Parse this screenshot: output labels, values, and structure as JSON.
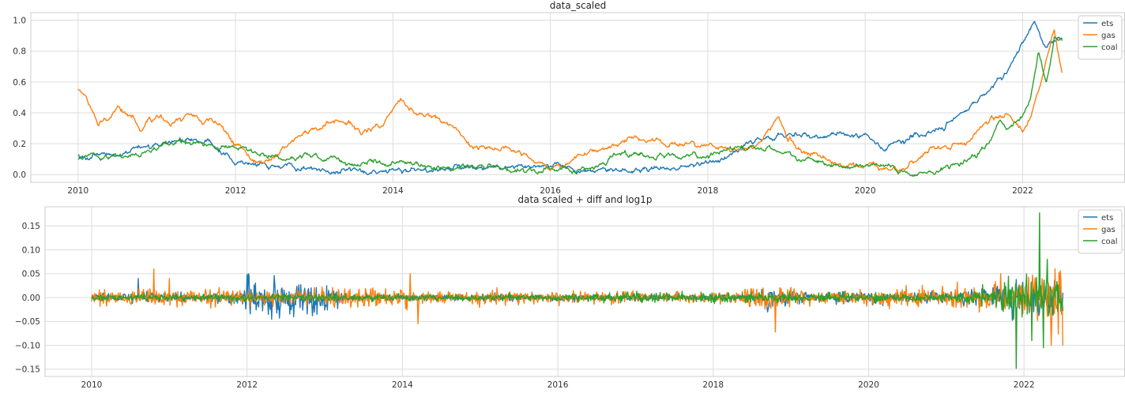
{
  "chart_data": [
    {
      "type": "line",
      "title": "data_scaled",
      "xlabel": "",
      "ylabel": "",
      "xlim": [
        2009.4,
        2023.3
      ],
      "ylim": [
        -0.05,
        1.05
      ],
      "x_ticks": [
        2010,
        2012,
        2014,
        2016,
        2018,
        2020,
        2022
      ],
      "x_tick_labels": [
        "2010",
        "2012",
        "2014",
        "2016",
        "2018",
        "2020",
        "2022"
      ],
      "y_ticks": [
        0.0,
        0.2,
        0.4,
        0.6,
        0.8,
        1.0
      ],
      "y_tick_labels": [
        "0.0",
        "0.2",
        "0.4",
        "0.6",
        "0.8",
        "1.0"
      ],
      "grid": true,
      "legend": "top-right",
      "x_range": [
        2010.0,
        2022.5
      ],
      "series": [
        {
          "name": "ets",
          "color": "#1f77b4",
          "points": [
            [
              2010.0,
              0.11
            ],
            [
              2010.5,
              0.12
            ],
            [
              2010.7,
              0.18
            ],
            [
              2011.0,
              0.19
            ],
            [
              2011.3,
              0.23
            ],
            [
              2011.6,
              0.21
            ],
            [
              2011.9,
              0.14
            ],
            [
              2012.0,
              0.06
            ],
            [
              2012.3,
              0.07
            ],
            [
              2012.6,
              0.06
            ],
            [
              2012.9,
              0.06
            ],
            [
              2013.0,
              0.03
            ],
            [
              2013.3,
              0.02
            ],
            [
              2013.6,
              0.02
            ],
            [
              2014.0,
              0.03
            ],
            [
              2014.3,
              0.04
            ],
            [
              2014.6,
              0.04
            ],
            [
              2015.0,
              0.04
            ],
            [
              2015.5,
              0.05
            ],
            [
              2016.0,
              0.04
            ],
            [
              2016.3,
              0.03
            ],
            [
              2016.6,
              0.03
            ],
            [
              2017.0,
              0.03
            ],
            [
              2017.5,
              0.04
            ],
            [
              2018.0,
              0.07
            ],
            [
              2018.3,
              0.13
            ],
            [
              2018.5,
              0.22
            ],
            [
              2018.8,
              0.25
            ],
            [
              2019.0,
              0.27
            ],
            [
              2019.3,
              0.25
            ],
            [
              2019.6,
              0.26
            ],
            [
              2020.0,
              0.25
            ],
            [
              2020.2,
              0.18
            ],
            [
              2020.5,
              0.23
            ],
            [
              2020.7,
              0.26
            ],
            [
              2021.0,
              0.3
            ],
            [
              2021.3,
              0.43
            ],
            [
              2021.6,
              0.55
            ],
            [
              2021.8,
              0.65
            ],
            [
              2022.0,
              0.85
            ],
            [
              2022.15,
              0.98
            ],
            [
              2022.3,
              0.84
            ],
            [
              2022.5,
              0.87
            ]
          ]
        },
        {
          "name": "gas",
          "color": "#ff7f0e",
          "points": [
            [
              2010.0,
              0.55
            ],
            [
              2010.1,
              0.5
            ],
            [
              2010.25,
              0.33
            ],
            [
              2010.4,
              0.36
            ],
            [
              2010.5,
              0.44
            ],
            [
              2010.7,
              0.36
            ],
            [
              2010.8,
              0.28
            ],
            [
              2010.9,
              0.35
            ],
            [
              2011.0,
              0.38
            ],
            [
              2011.2,
              0.33
            ],
            [
              2011.4,
              0.4
            ],
            [
              2011.6,
              0.36
            ],
            [
              2011.8,
              0.32
            ],
            [
              2012.0,
              0.22
            ],
            [
              2012.2,
              0.12
            ],
            [
              2012.4,
              0.08
            ],
            [
              2012.7,
              0.2
            ],
            [
              2013.0,
              0.28
            ],
            [
              2013.3,
              0.35
            ],
            [
              2013.6,
              0.28
            ],
            [
              2013.9,
              0.36
            ],
            [
              2014.1,
              0.5
            ],
            [
              2014.2,
              0.42
            ],
            [
              2014.5,
              0.38
            ],
            [
              2014.8,
              0.3
            ],
            [
              2015.0,
              0.18
            ],
            [
              2015.3,
              0.17
            ],
            [
              2015.6,
              0.16
            ],
            [
              2015.9,
              0.08
            ],
            [
              2016.0,
              0.03
            ],
            [
              2016.3,
              0.1
            ],
            [
              2016.6,
              0.18
            ],
            [
              2016.9,
              0.22
            ],
            [
              2017.1,
              0.24
            ],
            [
              2017.4,
              0.2
            ],
            [
              2017.7,
              0.19
            ],
            [
              2018.0,
              0.18
            ],
            [
              2018.3,
              0.17
            ],
            [
              2018.6,
              0.18
            ],
            [
              2018.8,
              0.28
            ],
            [
              2018.9,
              0.38
            ],
            [
              2019.0,
              0.25
            ],
            [
              2019.2,
              0.16
            ],
            [
              2019.5,
              0.1
            ],
            [
              2019.8,
              0.07
            ],
            [
              2020.0,
              0.05
            ],
            [
              2020.3,
              0.03
            ],
            [
              2020.5,
              0.04
            ],
            [
              2020.7,
              0.1
            ],
            [
              2020.9,
              0.18
            ],
            [
              2021.0,
              0.18
            ],
            [
              2021.3,
              0.2
            ],
            [
              2021.6,
              0.38
            ],
            [
              2021.8,
              0.4
            ],
            [
              2022.0,
              0.3
            ],
            [
              2022.1,
              0.4
            ],
            [
              2022.2,
              0.55
            ],
            [
              2022.3,
              0.75
            ],
            [
              2022.4,
              0.95
            ],
            [
              2022.5,
              0.65
            ]
          ]
        },
        {
          "name": "coal",
          "color": "#2ca02c",
          "points": [
            [
              2010.0,
              0.12
            ],
            [
              2010.3,
              0.12
            ],
            [
              2010.6,
              0.13
            ],
            [
              2010.9,
              0.16
            ],
            [
              2011.1,
              0.21
            ],
            [
              2011.4,
              0.19
            ],
            [
              2011.7,
              0.18
            ],
            [
              2012.0,
              0.16
            ],
            [
              2012.4,
              0.12
            ],
            [
              2012.8,
              0.1
            ],
            [
              2013.0,
              0.11
            ],
            [
              2013.3,
              0.1
            ],
            [
              2013.6,
              0.07
            ],
            [
              2014.0,
              0.08
            ],
            [
              2014.3,
              0.07
            ],
            [
              2014.6,
              0.05
            ],
            [
              2015.0,
              0.04
            ],
            [
              2015.5,
              0.04
            ],
            [
              2016.0,
              0.02
            ],
            [
              2016.3,
              0.03
            ],
            [
              2016.6,
              0.06
            ],
            [
              2016.9,
              0.15
            ],
            [
              2017.2,
              0.12
            ],
            [
              2017.5,
              0.1
            ],
            [
              2017.8,
              0.13
            ],
            [
              2018.0,
              0.13
            ],
            [
              2018.3,
              0.16
            ],
            [
              2018.6,
              0.17
            ],
            [
              2018.9,
              0.14
            ],
            [
              2019.2,
              0.1
            ],
            [
              2019.5,
              0.08
            ],
            [
              2019.8,
              0.05
            ],
            [
              2020.0,
              0.05
            ],
            [
              2020.3,
              0.04
            ],
            [
              2020.6,
              0.01
            ],
            [
              2020.9,
              0.02
            ],
            [
              2021.1,
              0.06
            ],
            [
              2021.4,
              0.12
            ],
            [
              2021.6,
              0.22
            ],
            [
              2021.7,
              0.35
            ],
            [
              2021.8,
              0.28
            ],
            [
              2022.0,
              0.38
            ],
            [
              2022.1,
              0.5
            ],
            [
              2022.2,
              0.8
            ],
            [
              2022.3,
              0.6
            ],
            [
              2022.4,
              0.88
            ],
            [
              2022.5,
              0.85
            ]
          ]
        }
      ]
    },
    {
      "type": "line",
      "title": "data scaled + diff and log1p",
      "xlabel": "",
      "ylabel": "",
      "xlim": [
        2009.4,
        2023.3
      ],
      "ylim": [
        -0.165,
        0.19
      ],
      "x_ticks": [
        2010,
        2012,
        2014,
        2016,
        2018,
        2020,
        2022
      ],
      "x_tick_labels": [
        "2010",
        "2012",
        "2014",
        "2016",
        "2018",
        "2020",
        "2022"
      ],
      "y_ticks": [
        -0.15,
        -0.1,
        -0.05,
        0.0,
        0.05,
        0.1,
        0.15
      ],
      "y_tick_labels": [
        "−0.15",
        "−0.10",
        "−0.05",
        "0.00",
        "0.05",
        "0.10",
        "0.15"
      ],
      "grid": true,
      "legend": "top-right",
      "x_range": [
        2010.0,
        2022.5
      ],
      "series": [
        {
          "name": "ets",
          "color": "#1f77b4",
          "volatility": [
            [
              2010.0,
              0.008
            ],
            [
              2011.9,
              0.01
            ],
            [
              2012.0,
              0.04
            ],
            [
              2013.0,
              0.03
            ],
            [
              2013.3,
              0.006
            ],
            [
              2018.5,
              0.006
            ],
            [
              2018.7,
              0.022
            ],
            [
              2019.0,
              0.01
            ],
            [
              2021.0,
              0.012
            ],
            [
              2021.5,
              0.016
            ],
            [
              2022.0,
              0.03
            ],
            [
              2022.5,
              0.035
            ]
          ],
          "spikes": [
            [
              2010.6,
              0.04
            ],
            [
              2012.0,
              -0.046
            ],
            [
              2012.0,
              0.048
            ],
            [
              2012.6,
              -0.04
            ],
            [
              2012.9,
              -0.035
            ],
            [
              2018.7,
              -0.03
            ],
            [
              2022.2,
              -0.03
            ],
            [
              2022.4,
              0.03
            ]
          ]
        },
        {
          "name": "gas",
          "color": "#ff7f0e",
          "volatility": [
            [
              2010.0,
              0.012
            ],
            [
              2012.0,
              0.015
            ],
            [
              2014.0,
              0.02
            ],
            [
              2014.2,
              0.012
            ],
            [
              2016.0,
              0.012
            ],
            [
              2018.0,
              0.01
            ],
            [
              2018.9,
              0.025
            ],
            [
              2019.2,
              0.012
            ],
            [
              2020.0,
              0.015
            ],
            [
              2021.5,
              0.02
            ],
            [
              2022.0,
              0.04
            ],
            [
              2022.5,
              0.05
            ]
          ],
          "spikes": [
            [
              2010.8,
              0.06
            ],
            [
              2011.0,
              0.04
            ],
            [
              2014.1,
              0.05
            ],
            [
              2014.2,
              -0.055
            ],
            [
              2018.8,
              0.07
            ],
            [
              2018.8,
              -0.072
            ],
            [
              2021.7,
              0.05
            ],
            [
              2022.35,
              -0.1
            ],
            [
              2022.5,
              -0.1
            ],
            [
              2022.4,
              0.06
            ]
          ]
        },
        {
          "name": "coal",
          "color": "#2ca02c",
          "volatility": [
            [
              2010.0,
              0.006
            ],
            [
              2016.0,
              0.006
            ],
            [
              2017.0,
              0.01
            ],
            [
              2021.0,
              0.008
            ],
            [
              2021.7,
              0.02
            ],
            [
              2022.0,
              0.04
            ],
            [
              2022.5,
              0.04
            ]
          ],
          "spikes": [
            [
              2021.9,
              -0.148
            ],
            [
              2022.1,
              -0.09
            ],
            [
              2022.2,
              0.177
            ],
            [
              2022.25,
              -0.105
            ],
            [
              2022.3,
              0.08
            ]
          ]
        }
      ]
    }
  ]
}
